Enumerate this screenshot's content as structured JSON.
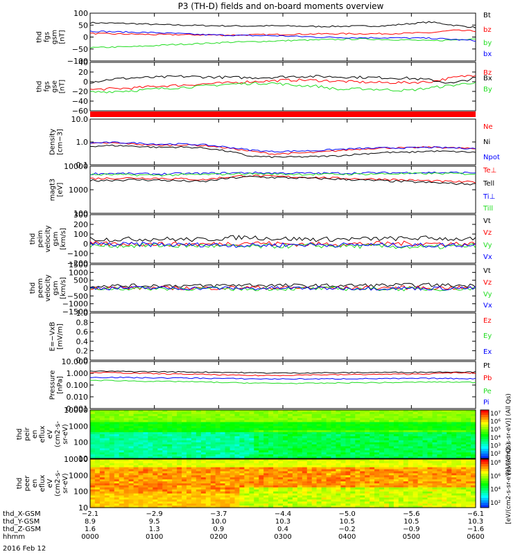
{
  "title": "P3 (TH-D) fields and on-board moments overview",
  "date": "2016 Feb 12",
  "colors": {
    "black": "#000000",
    "red": "#ff0000",
    "green": "#22dd22",
    "blue": "#0000ff",
    "band": "#ff0000"
  },
  "chart_data": [
    {
      "type": "line",
      "ylabel_lines": [
        "thd",
        "fgs",
        "gsm",
        "[nT]"
      ],
      "ylim": [
        -100,
        100
      ],
      "yticks": [
        "100",
        "50",
        "0",
        "−50",
        "−100"
      ],
      "series": [
        {
          "name": "Bt",
          "color": "red_black",
          "values": [
            60,
            58,
            56,
            52,
            50,
            48,
            47,
            46,
            47,
            46,
            44,
            45,
            46,
            47,
            55,
            63,
            50,
            40
          ]
        },
        {
          "name": "bz",
          "values": [
            15,
            13,
            12,
            10,
            10,
            9,
            8,
            9,
            10,
            12,
            13,
            14,
            14,
            14,
            16,
            18,
            28,
            25
          ]
        },
        {
          "name": "by",
          "values": [
            -45,
            -42,
            -40,
            -35,
            -30,
            -27,
            -22,
            -20,
            -17,
            -14,
            -12,
            -10,
            -8,
            -10,
            -12,
            -16,
            -12,
            -6
          ]
        },
        {
          "name": "bx",
          "values": [
            25,
            22,
            20,
            18,
            14,
            10,
            8,
            6,
            6,
            3,
            0,
            -2,
            -3,
            -3,
            -4,
            -5,
            -10,
            -15
          ]
        }
      ]
    },
    {
      "type": "line",
      "ylabel_lines": [
        "thd",
        "fgs",
        "gse",
        "[nT]"
      ],
      "ylim": [
        -70,
        40
      ],
      "yticks": [
        "40",
        "20",
        "0",
        "−20",
        "−40",
        "−60"
      ],
      "series": [
        {
          "name": "Bz",
          "values": [
            -22,
            -20,
            -18,
            -14,
            -12,
            -9,
            -7,
            -4,
            -2,
            0,
            -1,
            -3,
            -5,
            -6,
            -6,
            -4,
            5,
            12
          ]
        },
        {
          "name": "Bx",
          "values": [
            -5,
            2,
            5,
            6,
            8,
            7,
            6,
            5,
            6,
            8,
            8,
            7,
            6,
            5,
            4,
            0,
            -8,
            5
          ]
        },
        {
          "name": "By",
          "values": [
            -28,
            -26,
            -24,
            -20,
            -17,
            -14,
            -10,
            -8,
            -7,
            -12,
            -14,
            -22,
            -20,
            -22,
            -24,
            -18,
            -12,
            -5
          ]
        }
      ]
    },
    {
      "type": "line",
      "ylabel_lines": [
        "Density",
        "[cm−3]"
      ],
      "ylim_log": [
        0.1,
        10
      ],
      "yticks": [
        "10.0",
        "1.0",
        "0.1"
      ],
      "series": [
        {
          "name": "Ne",
          "values": [
            0.85,
            0.9,
            0.8,
            0.7,
            0.75,
            0.7,
            0.55,
            0.4,
            0.3,
            0.32,
            0.35,
            0.42,
            0.5,
            0.55,
            0.55,
            0.6,
            0.55,
            0.5
          ]
        },
        {
          "name": "Ni",
          "values": [
            0.65,
            0.7,
            0.65,
            0.58,
            0.6,
            0.55,
            0.4,
            0.24,
            0.22,
            0.22,
            0.23,
            0.25,
            0.3,
            0.35,
            0.35,
            0.4,
            0.38,
            0.35
          ]
        },
        {
          "name": "Npot",
          "values": [
            0.9,
            0.95,
            0.9,
            0.8,
            0.82,
            0.75,
            0.6,
            0.45,
            0.38,
            0.4,
            0.42,
            0.48,
            0.52,
            0.55,
            0.55,
            0.58,
            0.55,
            0.52
          ]
        }
      ]
    },
    {
      "type": "line",
      "ylabel_lines": [
        "magt3",
        "[eV]"
      ],
      "ylim_log": [
        60,
        12000
      ],
      "yticks": [
        "10000",
        "1000",
        "100"
      ],
      "series": [
        {
          "name": "Te⊥",
          "values": [
            3000,
            3100,
            3200,
            3100,
            2900,
            2600,
            3500,
            4200,
            3800,
            3600,
            3400,
            3100,
            2900,
            2800,
            2500,
            2300,
            2100,
            2000
          ]
        },
        {
          "name": "Tell",
          "values": [
            2400,
            2500,
            2600,
            2500,
            2300,
            2100,
            3000,
            3700,
            3400,
            3200,
            3000,
            2800,
            2500,
            2300,
            2100,
            1900,
            1700,
            1600
          ]
        },
        {
          "name": "Ti⊥",
          "values": [
            5200,
            5300,
            5100,
            5000,
            5200,
            5300,
            5600,
            5800,
            5600,
            5500,
            5400,
            5500,
            5600,
            5700,
            5800,
            5900,
            5800,
            5700
          ]
        },
        {
          "name": "Till",
          "values": [
            4600,
            4700,
            4500,
            4400,
            4600,
            4700,
            5000,
            5200,
            5000,
            4900,
            4800,
            4900,
            5000,
            5100,
            5200,
            5300,
            5200,
            5100
          ]
        }
      ]
    },
    {
      "type": "line",
      "ylabel_lines": [
        "thd",
        "peim",
        "velocity",
        "gsm",
        "[km/s]"
      ],
      "ylim": [
        -200,
        320
      ],
      "yticks": [
        "300",
        "200",
        "100",
        "0",
        "−100",
        "−200"
      ],
      "series": [
        {
          "name": "Vt",
          "values": [
            60,
            55,
            58,
            60,
            55,
            52,
            70,
            80,
            65,
            60,
            55,
            58,
            60,
            62,
            65,
            70,
            60,
            55
          ]
        },
        {
          "name": "Vz",
          "values": [
            10,
            5,
            8,
            6,
            4,
            2,
            10,
            20,
            10,
            5,
            4,
            6,
            8,
            10,
            12,
            10,
            8,
            6
          ]
        },
        {
          "name": "Vy",
          "values": [
            -15,
            -10,
            -12,
            -10,
            -15,
            -12,
            -20,
            -25,
            -18,
            -15,
            -12,
            -15,
            -18,
            -20,
            -25,
            -30,
            -20,
            -15
          ]
        },
        {
          "name": "Vx",
          "values": [
            5,
            0,
            2,
            0,
            -5,
            -2,
            -5,
            -10,
            -5,
            -3,
            -2,
            -4,
            -5,
            -6,
            -8,
            -10,
            -6,
            -4
          ]
        }
      ]
    },
    {
      "type": "line",
      "ylabel_lines": [
        "thd",
        "peem",
        "velocity",
        "gsm",
        "[km/s]"
      ],
      "ylim": [
        -1500,
        1500
      ],
      "yticks": [
        "1500",
        "1000",
        "500",
        "0",
        "−500",
        "−1000",
        "−1500"
      ],
      "series": [
        {
          "name": "Vt",
          "values": [
            150,
            140,
            150,
            160,
            150,
            140,
            180,
            200,
            170,
            160,
            150,
            160,
            170,
            180,
            190,
            200,
            170,
            160
          ]
        },
        {
          "name": "Vz",
          "values": [
            20,
            10,
            15,
            10,
            5,
            0,
            20,
            40,
            20,
            10,
            5,
            10,
            15,
            20,
            25,
            20,
            15,
            10
          ]
        },
        {
          "name": "Vy",
          "values": [
            -40,
            -30,
            -35,
            -30,
            -40,
            -35,
            -50,
            -60,
            -45,
            -40,
            -35,
            -40,
            -45,
            -50,
            -60,
            -70,
            -50,
            -40
          ]
        },
        {
          "name": "Vx",
          "values": [
            10,
            0,
            5,
            0,
            -10,
            -5,
            -10,
            -20,
            -10,
            -5,
            -5,
            -8,
            -10,
            -12,
            -15,
            -20,
            -12,
            -8
          ]
        }
      ]
    },
    {
      "type": "line",
      "ylabel_lines": [
        "E=−VxB",
        "[mV/m]"
      ],
      "ylim": [
        0,
        1
      ],
      "yticks": [
        "1.0",
        "0.8",
        "0.6",
        "0.4",
        "0.2",
        "0.0"
      ],
      "series": [
        {
          "name": "Ez",
          "values": []
        },
        {
          "name": "Ey",
          "values": []
        },
        {
          "name": "Ex",
          "values": []
        }
      ]
    },
    {
      "type": "line",
      "ylabel_lines": [
        "Pressure",
        "[nPa]"
      ],
      "ylim_log": [
        0.001,
        10
      ],
      "yticks": [
        "10.000",
        "1.000",
        "0.100",
        "0.010",
        "0.001"
      ],
      "series": [
        {
          "name": "Pt",
          "values": [
            1.5,
            1.45,
            1.4,
            1.35,
            1.3,
            1.25,
            1.2,
            1.1,
            1.05,
            1.05,
            1.1,
            1.1,
            1.15,
            1.2,
            1.2,
            1.25,
            1.3,
            1.3
          ]
        },
        {
          "name": "Pb",
          "values": [
            1.2,
            1.1,
            1.0,
            0.9,
            0.85,
            0.8,
            0.7,
            0.65,
            0.65,
            0.7,
            0.75,
            0.75,
            0.8,
            0.8,
            0.85,
            0.9,
            1.1,
            1.0
          ]
        },
        {
          "name": "Pe",
          "values": [
            0.25,
            0.24,
            0.22,
            0.2,
            0.2,
            0.18,
            0.16,
            0.15,
            0.14,
            0.14,
            0.14,
            0.15,
            0.16,
            0.16,
            0.17,
            0.18,
            0.18,
            0.17
          ]
        },
        {
          "name": "Pi",
          "values": [
            0.45,
            0.45,
            0.42,
            0.4,
            0.4,
            0.38,
            0.36,
            0.34,
            0.33,
            0.33,
            0.33,
            0.34,
            0.35,
            0.35,
            0.36,
            0.37,
            0.36,
            0.35
          ]
        }
      ]
    },
    {
      "type": "heatmap",
      "ylabel_lines": [
        "thd",
        "peir",
        "en",
        "eflux",
        "eV",
        "(cm2-s-",
        "sr-eV)"
      ],
      "ylim_log": [
        8,
        20000
      ],
      "yticks": [
        "10000",
        "1000",
        "100",
        "10"
      ],
      "colorbar": {
        "ticks": [
          "10⁷",
          "10⁶",
          "10⁵",
          "10⁴",
          "10³",
          "10²"
        ],
        "label": "[eV/(cm2-s-sr-eV)] (All Qs)"
      }
    },
    {
      "type": "heatmap",
      "ylabel_lines": [
        "thd",
        "peer",
        "en",
        "eflux",
        "eV",
        "(cm2-s-",
        "sr-eV)"
      ],
      "ylim_log": [
        8,
        20000
      ],
      "yticks": [
        "10000",
        "1000",
        "100",
        "10"
      ],
      "colorbar": {
        "ticks": [
          "10⁸",
          "10⁶",
          "10⁴",
          "10²"
        ],
        "label": "[eV/(cm2-s-sr-eV)] (All Qs)"
      }
    }
  ],
  "ephemeris": {
    "rows": [
      {
        "label": "thd_X-GSM",
        "values": [
          "−2.1",
          "−2.9",
          "−3.7",
          "−4.4",
          "−5.0",
          "−5.6",
          "−6.1"
        ]
      },
      {
        "label": "thd_Y-GSM",
        "values": [
          "8.9",
          "9.5",
          "10.0",
          "10.3",
          "10.5",
          "10.5",
          "10.3"
        ]
      },
      {
        "label": "thd_Z-GSM",
        "values": [
          "1.6",
          "1.3",
          "0.9",
          "0.4",
          "−0.2",
          "−0.9",
          "−1.6"
        ]
      },
      {
        "label": "hhmm",
        "values": [
          "0000",
          "0100",
          "0200",
          "0300",
          "0400",
          "0500",
          "0600"
        ]
      }
    ]
  }
}
